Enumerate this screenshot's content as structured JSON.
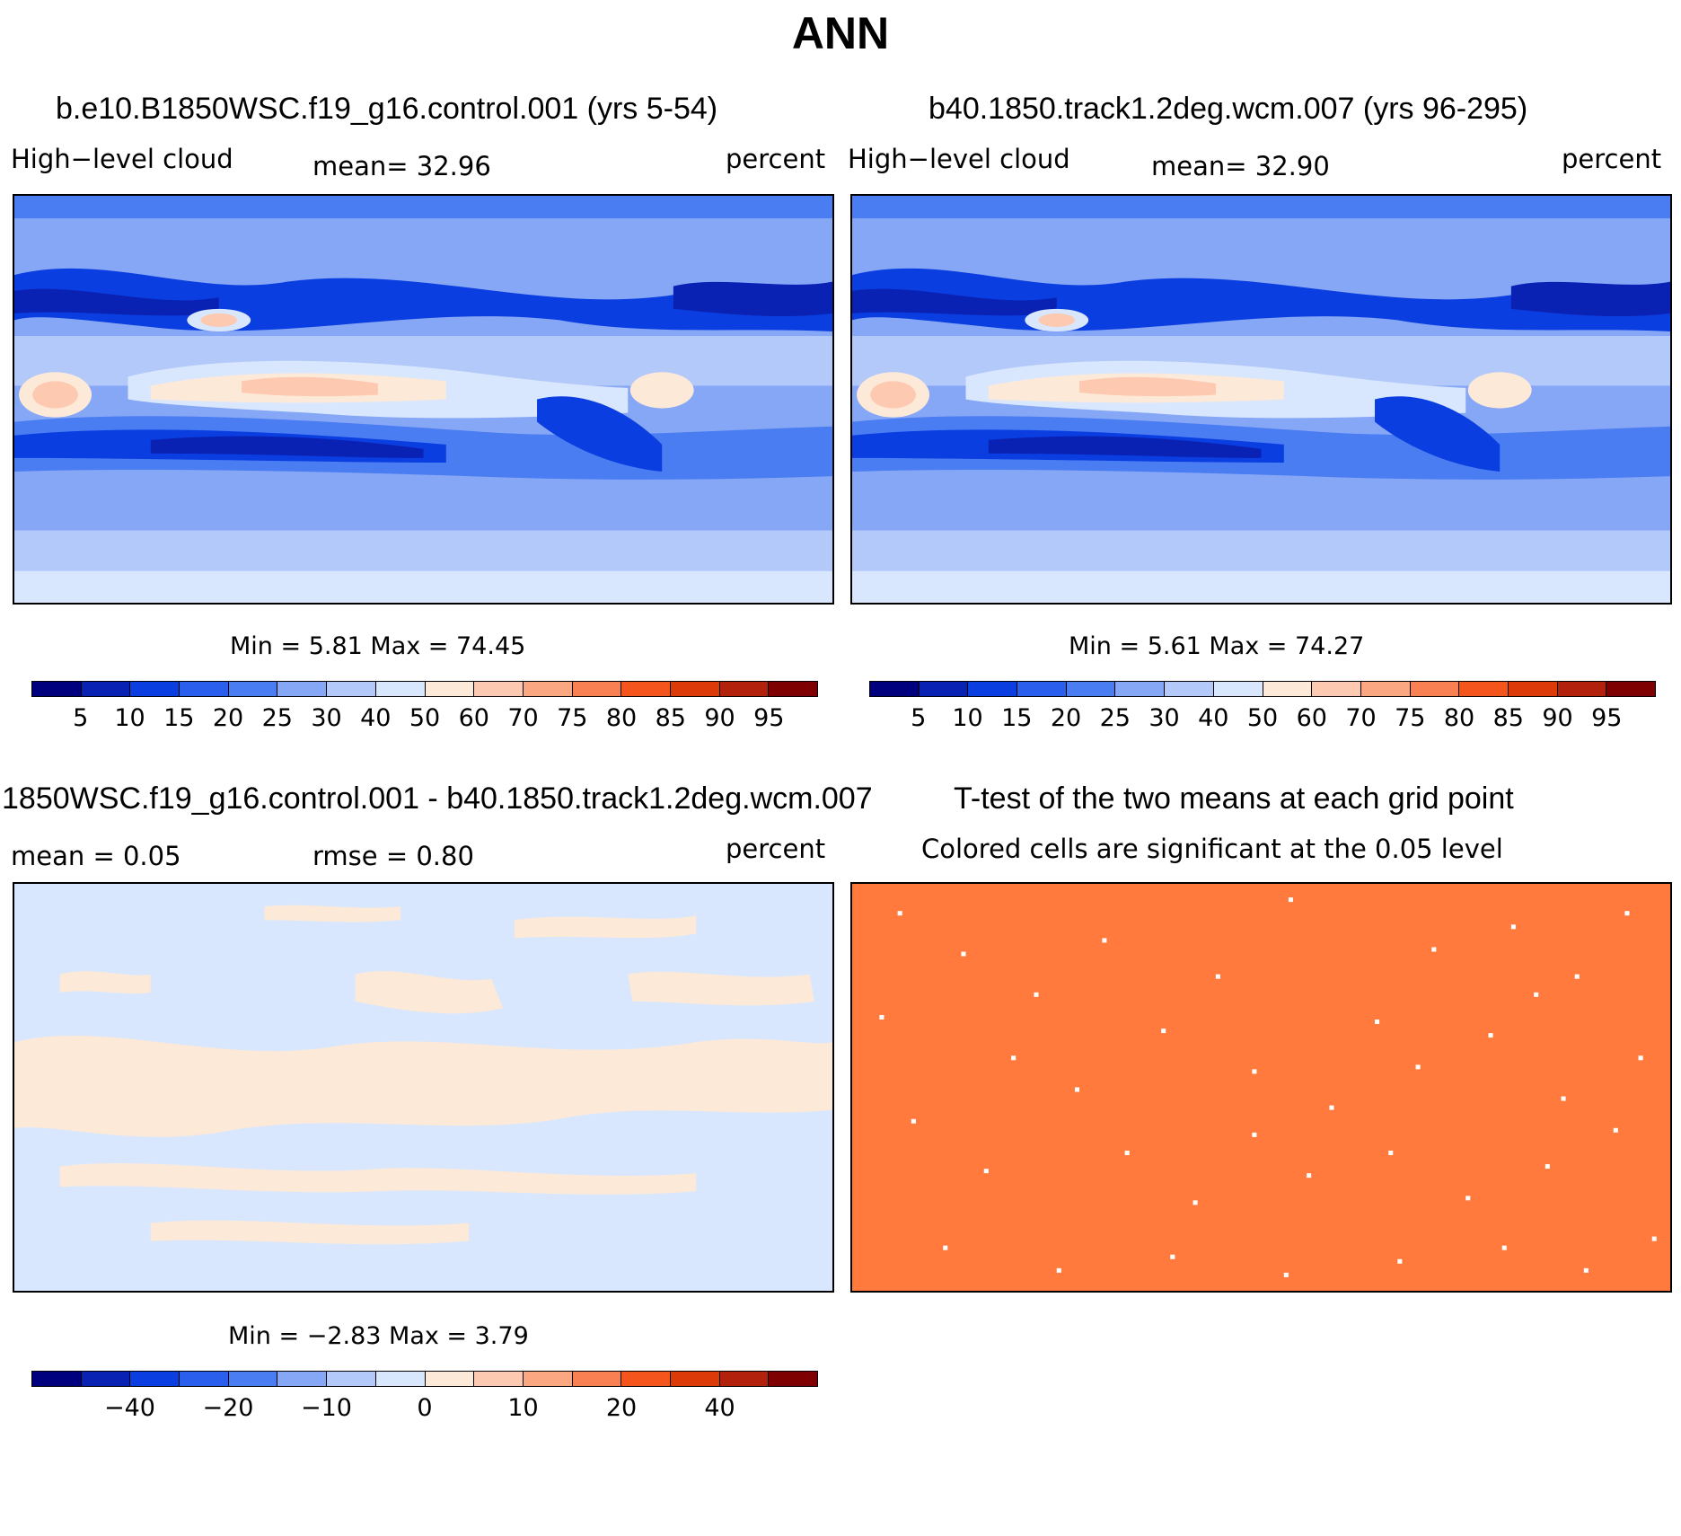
{
  "header": {
    "title": "ANN"
  },
  "panels": [
    {
      "title": "b.e10.B1850WSC.f19_g16.control.001 (yrs 5-54)",
      "variable": "High−level cloud",
      "mean_text": "mean=   32.96",
      "units": "percent",
      "minmax": "Min =    5.81 Max =   74.45",
      "colorbar_ticks": [
        "5",
        "10",
        "15",
        "20",
        "25",
        "30",
        "40",
        "50",
        "60",
        "70",
        "75",
        "80",
        "85",
        "90",
        "95"
      ]
    },
    {
      "title": "b40.1850.track1.2deg.wcm.007 (yrs 96-295)",
      "variable": "High−level cloud",
      "mean_text": "mean=   32.90",
      "units": "percent",
      "minmax": "Min =    5.61 Max =   74.27",
      "colorbar_ticks": [
        "5",
        "10",
        "15",
        "20",
        "25",
        "30",
        "40",
        "50",
        "60",
        "70",
        "75",
        "80",
        "85",
        "90",
        "95"
      ]
    },
    {
      "title": "1850WSC.f19_g16.control.001 - b40.1850.track1.2deg.wcm.007",
      "mean_text": "mean =    0.05",
      "rmse_text": "rmse =    0.80",
      "units": "percent",
      "minmax": "Min =  −2.83 Max =    3.79",
      "colorbar_ticks": [
        "−40",
        "−20",
        "−10",
        "0",
        "10",
        "20",
        "40"
      ]
    },
    {
      "title": "T-test of the two means at each grid point",
      "subtitle": "Colored cells are significant at the 0.05 level"
    }
  ],
  "colors": {
    "palette": [
      "#00007f",
      "#0a22b4",
      "#0a3ee0",
      "#2a5fee",
      "#4a7cf2",
      "#86a6f6",
      "#b3c9fa",
      "#d8e7fd",
      "#fde9d8",
      "#fdc9b0",
      "#fba882",
      "#f98052",
      "#f4551c",
      "#dc3a08",
      "#b2210c",
      "#7f0000"
    ],
    "ttest_fill": "#ff7a3c"
  }
}
